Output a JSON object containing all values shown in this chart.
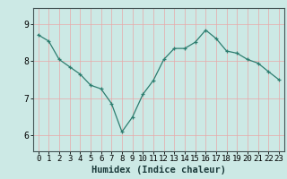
{
  "x": [
    0,
    1,
    2,
    3,
    4,
    5,
    6,
    7,
    8,
    9,
    10,
    11,
    12,
    13,
    14,
    15,
    16,
    17,
    18,
    19,
    20,
    21,
    22,
    23
  ],
  "y": [
    8.72,
    8.55,
    8.05,
    7.85,
    7.65,
    7.35,
    7.25,
    6.85,
    6.08,
    6.48,
    7.1,
    7.48,
    8.05,
    8.35,
    8.35,
    8.52,
    8.85,
    8.62,
    8.28,
    8.22,
    8.05,
    7.95,
    7.72,
    7.5
  ],
  "xlabel": "Humidex (Indice chaleur)",
  "xlim": [
    -0.5,
    23.5
  ],
  "ylim": [
    5.55,
    9.45
  ],
  "yticks": [
    6,
    7,
    8,
    9
  ],
  "xticks": [
    0,
    1,
    2,
    3,
    4,
    5,
    6,
    7,
    8,
    9,
    10,
    11,
    12,
    13,
    14,
    15,
    16,
    17,
    18,
    19,
    20,
    21,
    22,
    23
  ],
  "line_color": "#2d7d6f",
  "bg_color": "#cce9e5",
  "grid_color": "#e8a8a8",
  "tick_fontsize": 6.5,
  "xlabel_fontsize": 7.5
}
